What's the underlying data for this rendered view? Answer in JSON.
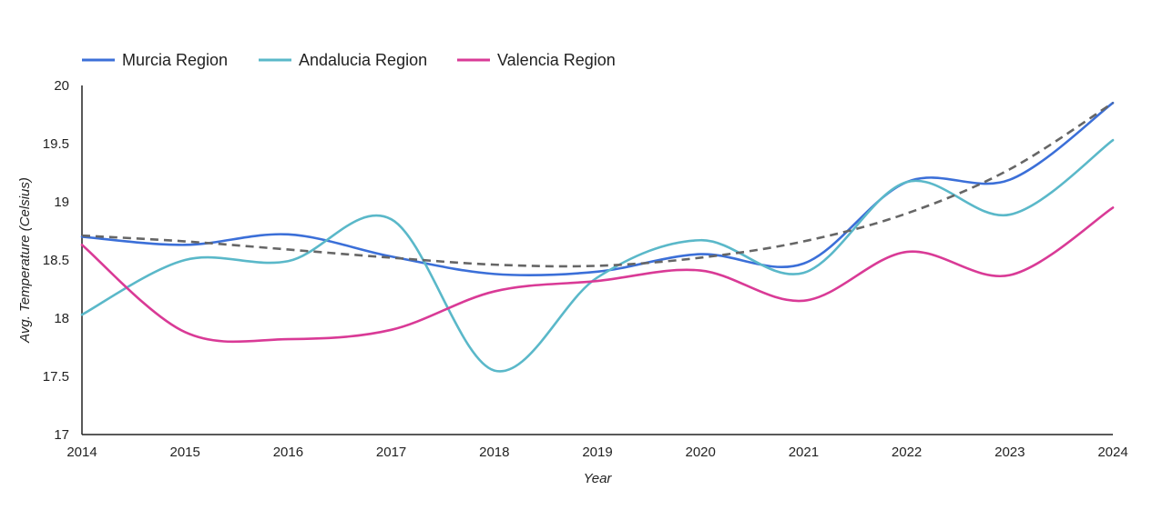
{
  "chart_data": {
    "type": "line",
    "title": "",
    "xlabel": "Year",
    "ylabel": "Avg. Temperature (Celsius)",
    "xlim": [
      2014,
      2024
    ],
    "ylim": [
      17,
      20
    ],
    "x_ticks": [
      "2014",
      "2015",
      "2016",
      "2017",
      "2018",
      "2019",
      "2020",
      "2021",
      "2022",
      "2023",
      "2024"
    ],
    "y_ticks": [
      "17",
      "17.5",
      "18",
      "18.5",
      "19",
      "19.5",
      "20"
    ],
    "legend_position": "top-left",
    "x": [
      2014,
      2015,
      2016,
      2017,
      2018,
      2019,
      2020,
      2021,
      2022,
      2023,
      2024
    ],
    "series": [
      {
        "name": "Murcia Region",
        "color": "#3b6fd8",
        "values": [
          18.7,
          18.63,
          18.72,
          18.53,
          18.38,
          18.4,
          18.55,
          18.47,
          19.17,
          19.19,
          19.85
        ]
      },
      {
        "name": "Andalucia Region",
        "color": "#5ab8c9",
        "values": [
          18.03,
          18.5,
          18.49,
          18.85,
          17.55,
          18.35,
          18.67,
          18.39,
          19.17,
          18.89,
          19.53
        ]
      },
      {
        "name": "Valencia Region",
        "color": "#d93a96",
        "values": [
          18.63,
          17.88,
          17.82,
          17.9,
          18.23,
          18.32,
          18.41,
          18.15,
          18.57,
          18.37,
          18.95
        ]
      }
    ],
    "trendline": {
      "color": "#666666",
      "style": "dashed",
      "values": [
        18.71,
        18.66,
        18.59,
        18.52,
        18.46,
        18.45,
        18.52,
        18.66,
        18.9,
        19.28,
        19.85
      ]
    }
  }
}
